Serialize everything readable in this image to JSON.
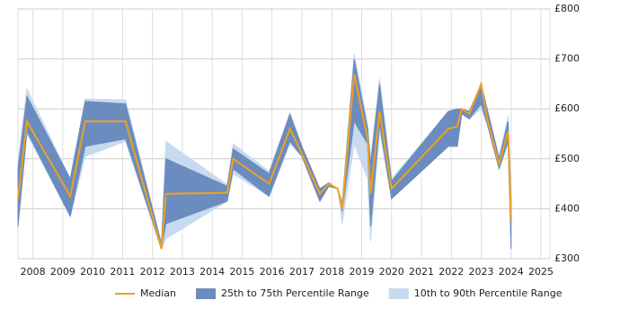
{
  "chart_data": {
    "type": "percentile-band-line",
    "x": [
      2007.5,
      2007.8,
      2009.25,
      2009.75,
      2011.1,
      2012.3,
      2012.45,
      2014.5,
      2014.7,
      2015.9,
      2016.6,
      2017.0,
      2017.6,
      2017.9,
      2018.2,
      2018.35,
      2018.75,
      2019.2,
      2019.3,
      2019.6,
      2020.0,
      2021.9,
      2022.2,
      2022.35,
      2022.6,
      2023.0,
      2023.2,
      2023.6,
      2023.9,
      2024.0
    ],
    "series": [
      {
        "name": "Median",
        "color": "#f0a020",
        "values": [
          420,
          575,
          425,
          575,
          575,
          320,
          430,
          432,
          500,
          450,
          560,
          510,
          430,
          450,
          440,
          400,
          670,
          540,
          430,
          595,
          440,
          560,
          565,
          600,
          590,
          650,
          580,
          490,
          555,
          375
        ]
      },
      {
        "name": "25th to 75th Percentile Range",
        "color": "#6a8cbe",
        "lower": [
          365,
          555,
          385,
          525,
          540,
          320,
          370,
          415,
          480,
          425,
          535,
          505,
          415,
          445,
          440,
          395,
          575,
          530,
          365,
          570,
          420,
          525,
          525,
          590,
          580,
          610,
          570,
          480,
          535,
          320
        ],
        "upper": [
          480,
          625,
          460,
          615,
          610,
          330,
          500,
          445,
          520,
          470,
          590,
          525,
          440,
          452,
          440,
          410,
          700,
          560,
          490,
          650,
          455,
          595,
          600,
          600,
          595,
          650,
          600,
          500,
          575,
          420
        ]
      },
      {
        "name": "10th to 90th Percentile Range",
        "color": "#c8daef",
        "lower": [
          360,
          550,
          385,
          505,
          535,
          318,
          340,
          415,
          470,
          425,
          530,
          505,
          415,
          445,
          440,
          370,
          530,
          460,
          335,
          555,
          420,
          525,
          525,
          590,
          580,
          600,
          570,
          480,
          530,
          320
        ],
        "upper": [
          490,
          640,
          460,
          620,
          618,
          330,
          535,
          448,
          530,
          475,
          590,
          525,
          440,
          452,
          440,
          415,
          710,
          570,
          500,
          660,
          460,
          595,
          600,
          600,
          595,
          650,
          600,
          505,
          585,
          420
        ]
      }
    ],
    "xlim": [
      2007.5,
      2025.3
    ],
    "xticks": [
      2008,
      2009,
      2010,
      2011,
      2012,
      2013,
      2014,
      2015,
      2016,
      2017,
      2018,
      2019,
      2020,
      2021,
      2022,
      2023,
      2024,
      2025
    ],
    "ylim": [
      300,
      800
    ],
    "yticks": [
      {
        "value": 300,
        "label": "£300"
      },
      {
        "value": 400,
        "label": "£400"
      },
      {
        "value": 500,
        "label": "£500"
      },
      {
        "value": 600,
        "label": "£600"
      },
      {
        "value": 700,
        "label": "£700"
      },
      {
        "value": 800,
        "label": "£800"
      }
    ],
    "grid": true
  }
}
